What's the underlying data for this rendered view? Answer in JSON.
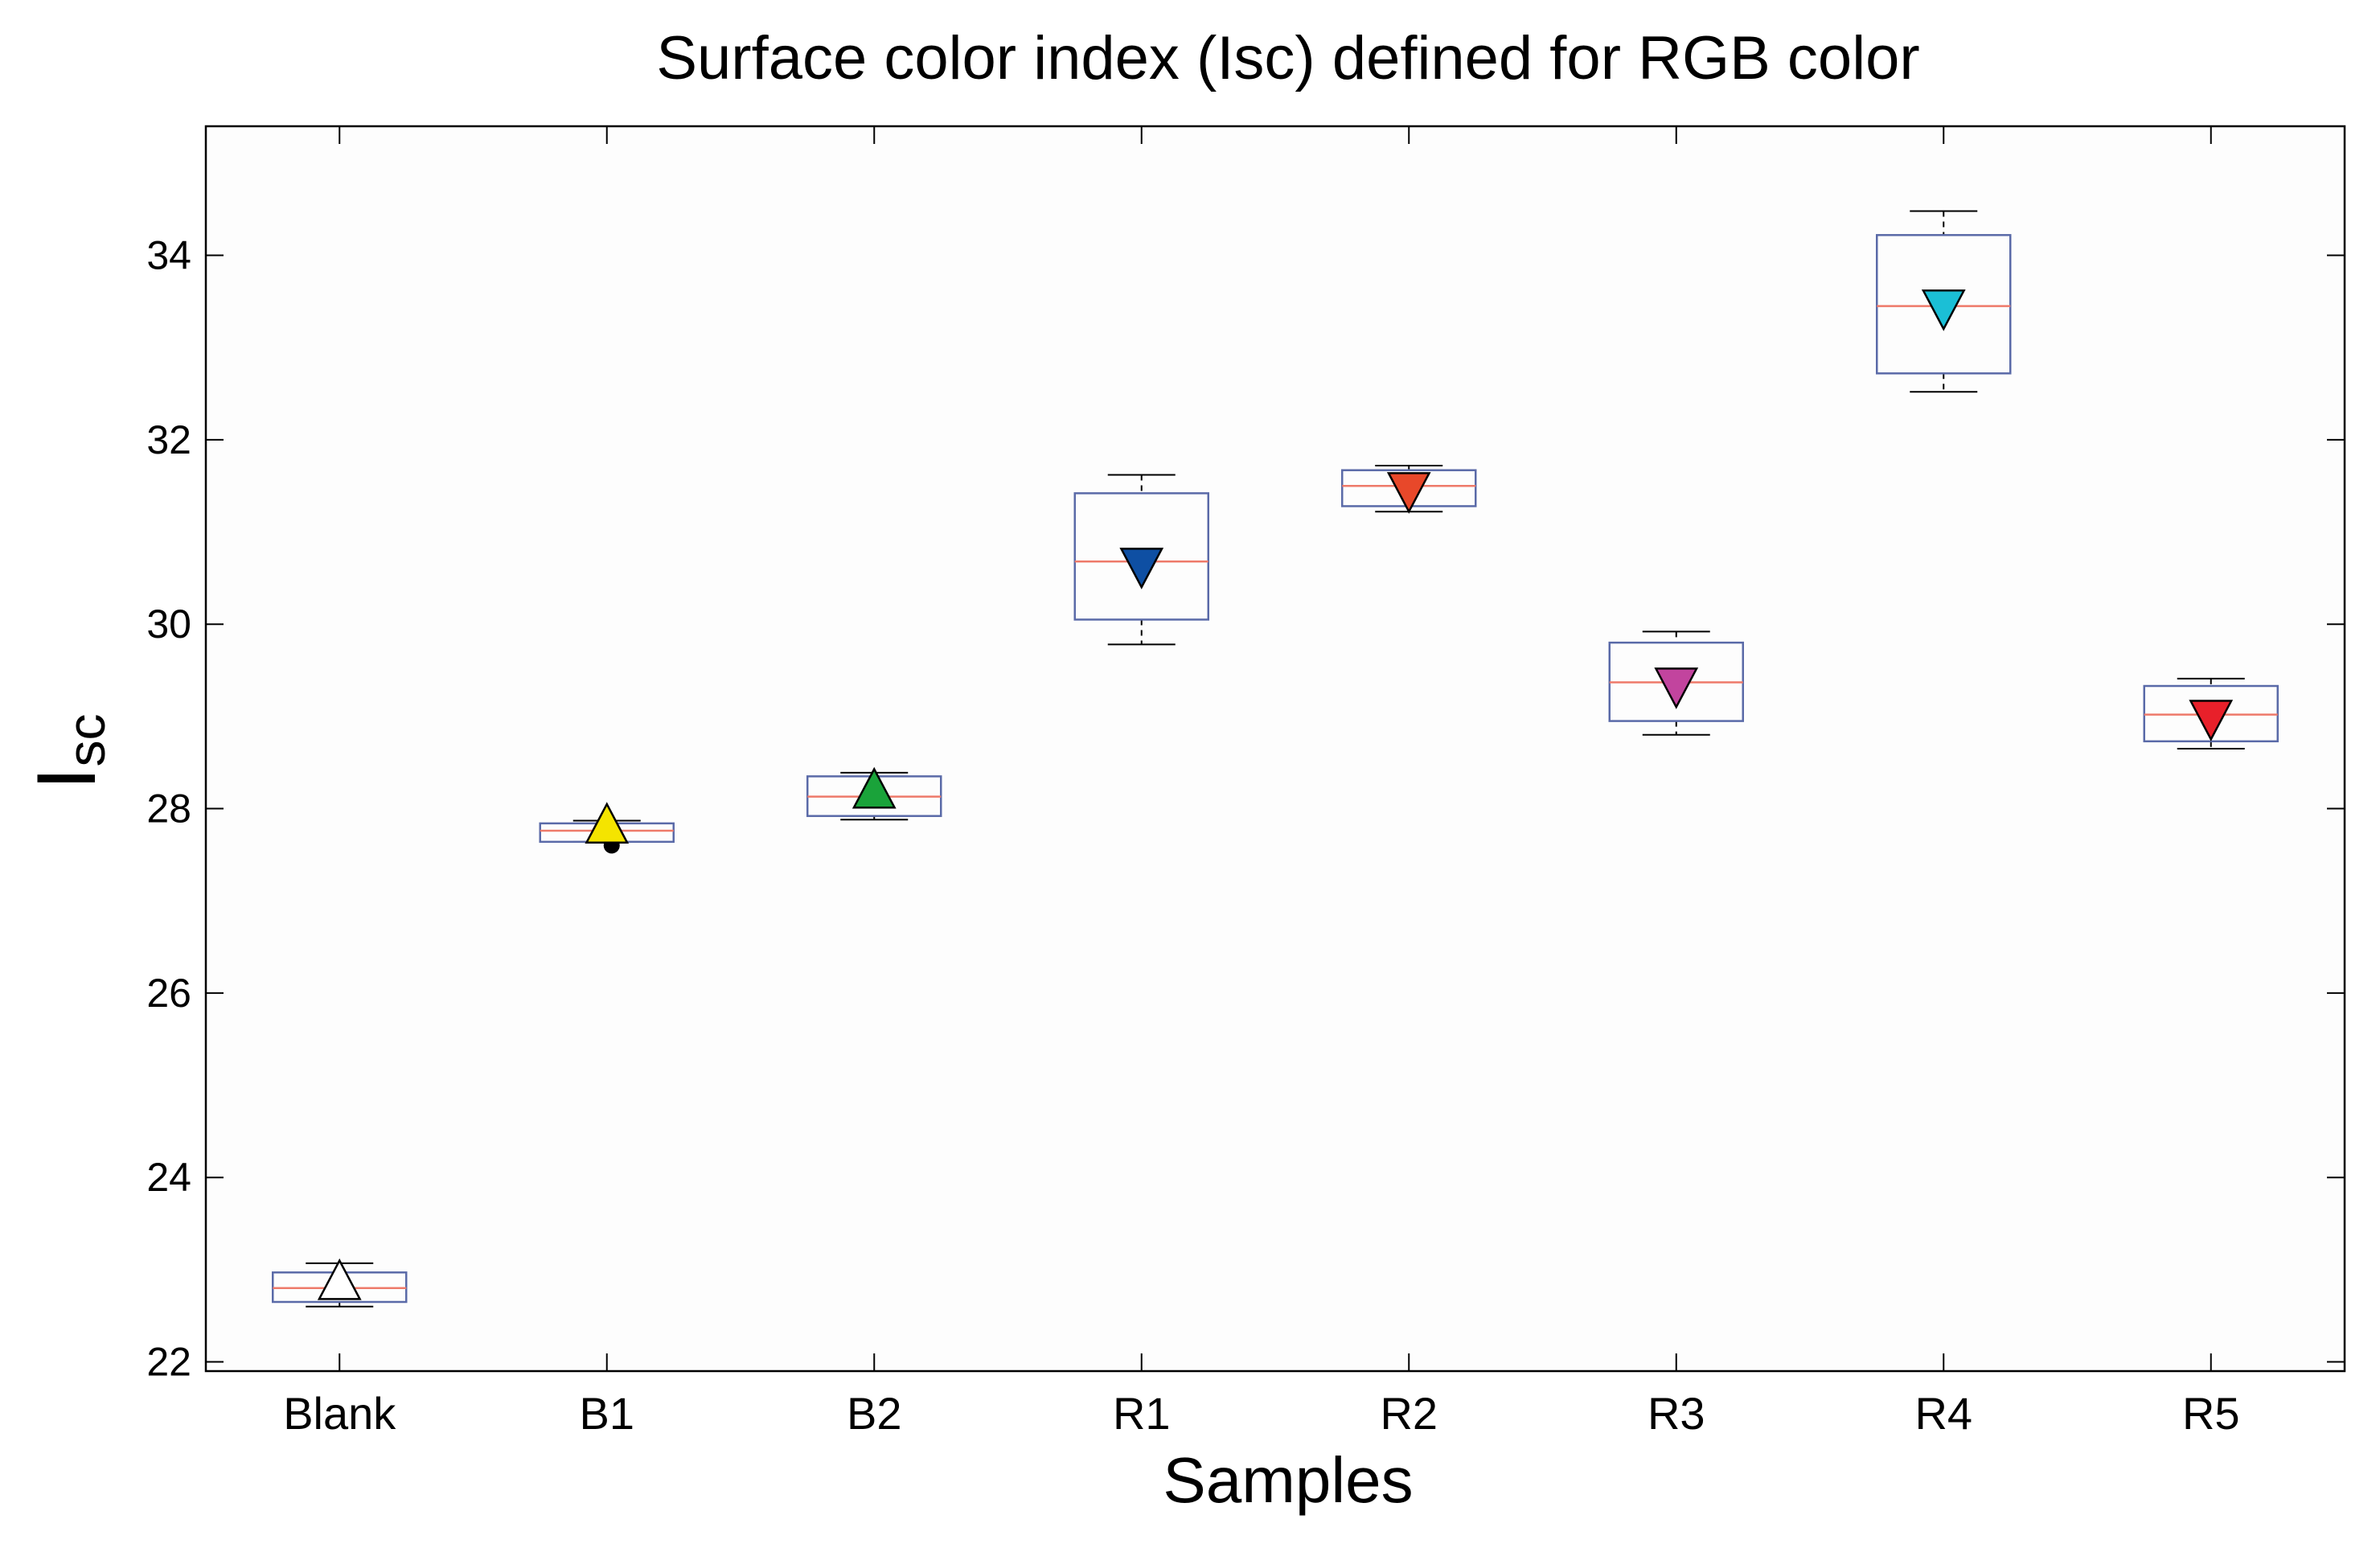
{
  "chart_data": {
    "type": "box",
    "title": "Surface color index (Isc) defined for RGB color",
    "xlabel": "Samples",
    "ylabel": {
      "main": "I",
      "subscript": "sc"
    },
    "ylim": [
      21.9,
      35.4
    ],
    "yticks": [
      22,
      24,
      26,
      28,
      30,
      32,
      34
    ],
    "grid": false,
    "categories": [
      "Blank",
      "B1",
      "B2",
      "R1",
      "R2",
      "R3",
      "R4",
      "R5"
    ],
    "boxes": [
      {
        "category": "Blank",
        "whisker_low": 22.6,
        "q1": 22.65,
        "median": 22.8,
        "q3": 22.97,
        "whisker_high": 23.07,
        "marker_value": 22.85,
        "marker": "triangle-up",
        "marker_color": "#ffffff",
        "outliers": []
      },
      {
        "category": "B1",
        "whisker_low": 27.64,
        "q1": 27.64,
        "median": 27.76,
        "q3": 27.84,
        "whisker_high": 27.87,
        "marker_value": 27.8,
        "marker": "triangle-up",
        "marker_color": "#f4e400",
        "outliers": [
          27.6
        ]
      },
      {
        "category": "B2",
        "whisker_low": 27.88,
        "q1": 27.92,
        "median": 28.13,
        "q3": 28.35,
        "whisker_high": 28.39,
        "marker_value": 28.18,
        "marker": "triangle-up",
        "marker_color": "#1aa33a",
        "outliers": []
      },
      {
        "category": "R1",
        "whisker_low": 29.78,
        "q1": 30.05,
        "median": 30.68,
        "q3": 31.42,
        "whisker_high": 31.62,
        "marker_value": 30.65,
        "marker": "triangle-down",
        "marker_color": "#0e4fa3",
        "outliers": []
      },
      {
        "category": "R2",
        "whisker_low": 31.22,
        "q1": 31.28,
        "median": 31.5,
        "q3": 31.67,
        "whisker_high": 31.72,
        "marker_value": 31.47,
        "marker": "triangle-down",
        "marker_color": "#e8482a",
        "outliers": []
      },
      {
        "category": "R3",
        "whisker_low": 28.8,
        "q1": 28.95,
        "median": 29.37,
        "q3": 29.8,
        "whisker_high": 29.92,
        "marker_value": 29.35,
        "marker": "triangle-down",
        "marker_color": "#c2449e",
        "outliers": []
      },
      {
        "category": "R4",
        "whisker_low": 32.52,
        "q1": 32.72,
        "median": 33.45,
        "q3": 34.22,
        "whisker_high": 34.48,
        "marker_value": 33.45,
        "marker": "triangle-down",
        "marker_color": "#1bbfd6",
        "outliers": []
      },
      {
        "category": "R5",
        "whisker_low": 28.65,
        "q1": 28.73,
        "median": 29.02,
        "q3": 29.33,
        "whisker_high": 29.41,
        "marker_value": 29.0,
        "marker": "triangle-down",
        "marker_color": "#e8202a",
        "outliers": []
      }
    ],
    "colors": {
      "box_edge": "#5a6aa8",
      "median": "#ee7a6a",
      "whisker": "#000000",
      "axes": "#000000",
      "plot_bg": "#fdfdfd"
    }
  }
}
